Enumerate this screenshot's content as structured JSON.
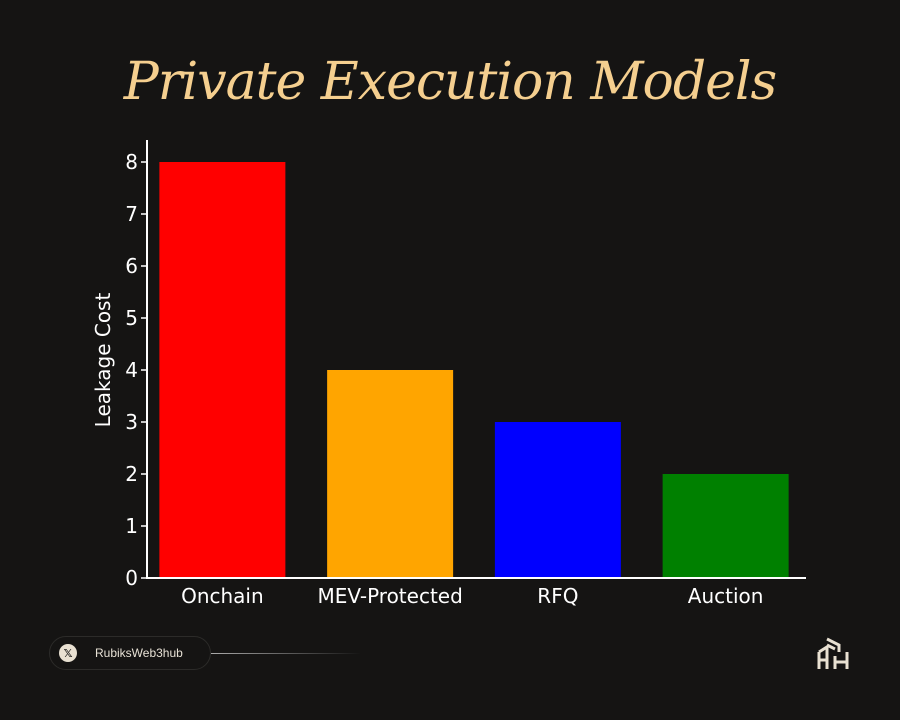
{
  "chart_data": {
    "type": "bar",
    "title": "Private Execution Models",
    "xlabel": "",
    "ylabel": "Leakage Cost",
    "categories": [
      "Onchain",
      "MEV-Protected",
      "RFQ",
      "Auction"
    ],
    "values": [
      8,
      4,
      3,
      2
    ],
    "colors": [
      "#ff0000",
      "#ffa500",
      "#0000ff",
      "#008000"
    ],
    "ylim": [
      0,
      8.4
    ],
    "yticks": [
      0,
      1,
      2,
      3,
      4,
      5,
      6,
      7,
      8
    ],
    "grid": false
  },
  "footer": {
    "handle": "RubiksWeb3hub",
    "social_icon": "x-icon",
    "logo": "rubiksweb3hub-logo"
  },
  "colors": {
    "background": "#151413",
    "title": "#f5cf8f"
  }
}
